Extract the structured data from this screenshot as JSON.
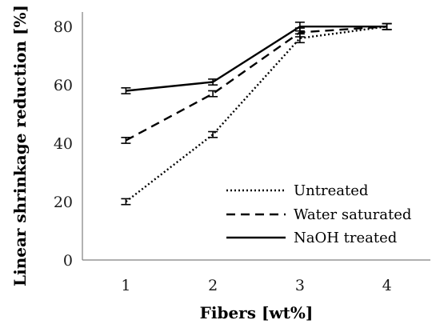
{
  "chart_data": {
    "type": "line",
    "title": "",
    "xlabel": "Fibers [wt%]",
    "ylabel": "Linear shrinkage reduction [%]",
    "x": [
      1,
      2,
      3,
      4
    ],
    "x_tick_labels": [
      "1",
      "2",
      "3",
      "4"
    ],
    "xlim": [
      0.5,
      4.5
    ],
    "ylim": [
      0,
      85
    ],
    "y_ticks": [
      0,
      20,
      40,
      60,
      80
    ],
    "y_tick_labels": [
      "0",
      "20",
      "40",
      "60",
      "80"
    ],
    "grid": false,
    "legend_position": "bottom-right",
    "series": [
      {
        "name": "Untreated",
        "style": "dotted",
        "color": "#000000",
        "values": [
          20,
          43,
          76,
          80
        ],
        "errors": [
          1,
          1,
          1.5,
          1
        ]
      },
      {
        "name": "Water saturated",
        "style": "dashed",
        "color": "#000000",
        "values": [
          41,
          57,
          78,
          80
        ],
        "errors": [
          1,
          1,
          1.5,
          1
        ]
      },
      {
        "name": "NaOH treated",
        "style": "solid",
        "color": "#000000",
        "values": [
          58,
          61,
          80,
          80
        ],
        "errors": [
          1,
          1,
          1.5,
          1
        ]
      }
    ]
  }
}
